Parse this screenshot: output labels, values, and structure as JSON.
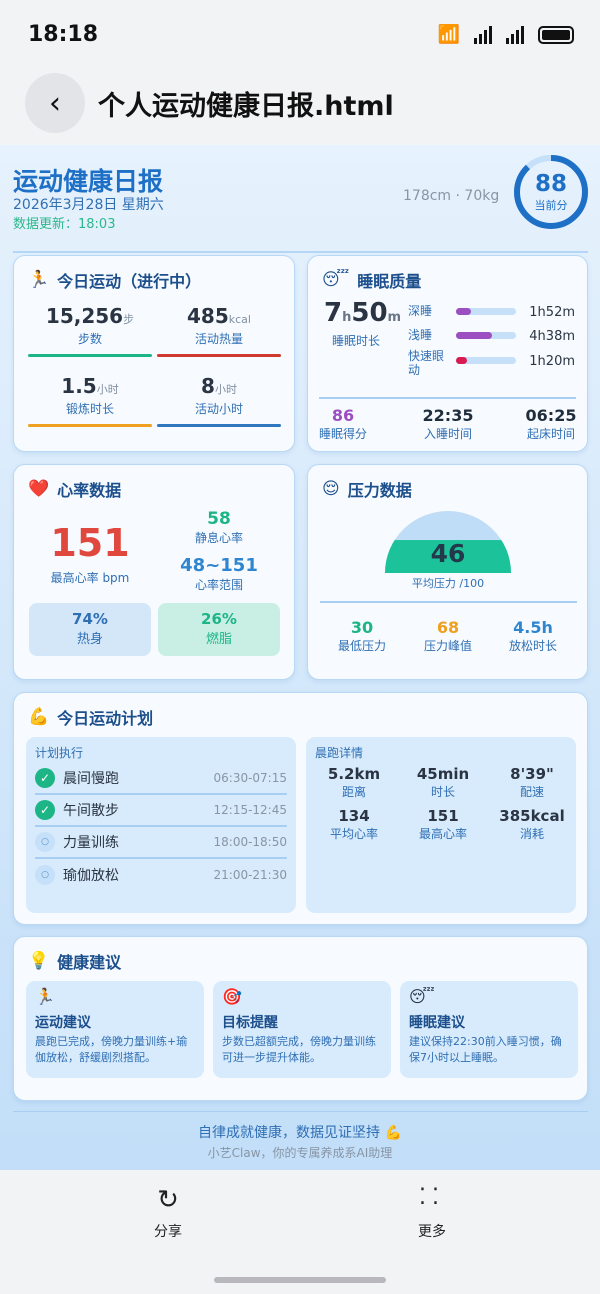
{
  "status_bar": {
    "time": "18:18"
  },
  "header": {
    "title": "个人运动健康日报.html"
  },
  "report": {
    "title": "运动健康日报",
    "date": "2026年3月28日 星期六",
    "updated": "数据更新：18:03",
    "body": "178cm · 70kg",
    "score": "88",
    "score_label": "当前分",
    "score_percent": 88
  },
  "colors": {
    "accent": "#1e6fc6",
    "green": "#1db586",
    "red": "#e0483e",
    "orange": "#f0a020"
  },
  "activity": {
    "icon": "🏃",
    "title": "今日运动（进行中）",
    "stats": [
      {
        "value": "15,256",
        "unit": "步",
        "label": "步数",
        "color": "#1db586"
      },
      {
        "value": "485",
        "unit": "kcal",
        "label": "活动热量",
        "color": "#d0392f"
      },
      {
        "value": "1.5",
        "unit": "小时",
        "label": "锻炼时长",
        "color": "#f0a020"
      },
      {
        "value": "8",
        "unit": "小时",
        "label": "活动小时",
        "color": "#2f78c0"
      }
    ]
  },
  "sleep": {
    "icon": "😴",
    "title": "睡眠质量",
    "hours": "7",
    "h": "h",
    "minutes": "50",
    "m": "m",
    "duration_label": "睡眠时长",
    "stages": [
      {
        "label": "深睡",
        "value": "1h52m",
        "fraction": 0.25,
        "color": "#9b4fc0"
      },
      {
        "label": "浅睡",
        "value": "4h38m",
        "fraction": 0.6,
        "color": "#9b4fc0"
      },
      {
        "label": "快速眼动",
        "value": "1h20m",
        "fraction": 0.18,
        "color": "#d81b50"
      }
    ],
    "score": "86",
    "score_label": "睡眠得分",
    "bedtime": "22:35",
    "bedtime_label": "入睡时间",
    "wake": "06:25",
    "wake_label": "起床时间"
  },
  "heart": {
    "icon": "❤️",
    "title": "心率数据",
    "max": "151",
    "max_label": "最高心率 bpm",
    "resting": "58",
    "resting_label": "静息心率",
    "range": "48~151",
    "range_label": "心率范围",
    "zones": [
      {
        "value": "74%",
        "label": "热身"
      },
      {
        "value": "26%",
        "label": "燃脂"
      }
    ]
  },
  "stress": {
    "icon": "😌",
    "title": "压力数据",
    "avg": "46",
    "avg_label": "平均压力 /100",
    "avg_value": 46,
    "stats": [
      {
        "value": "30",
        "label": "最低压力"
      },
      {
        "value": "68",
        "label": "压力峰值"
      },
      {
        "value": "4.5h",
        "label": "放松时长"
      }
    ]
  },
  "plan": {
    "icon": "💪",
    "title": "今日运动计划",
    "exec_title": "计划执行",
    "items": [
      {
        "name": "晨间慢跑",
        "time": "06:30-07:15",
        "done": true
      },
      {
        "name": "午间散步",
        "time": "12:15-12:45",
        "done": true
      },
      {
        "name": "力量训练",
        "time": "18:00-18:50",
        "done": false
      },
      {
        "name": "瑜伽放松",
        "time": "21:00-21:30",
        "done": false
      }
    ],
    "run_title": "晨跑详情",
    "run": [
      {
        "value": "5.2km",
        "label": "距离"
      },
      {
        "value": "45min",
        "label": "时长"
      },
      {
        "value": "8'39\"",
        "label": "配速"
      },
      {
        "value": "134",
        "label": "平均心率"
      },
      {
        "value": "151",
        "label": "最高心率"
      },
      {
        "value": "385kcal",
        "label": "消耗"
      }
    ]
  },
  "advice": {
    "icon": "💡",
    "title": "健康建议",
    "items": [
      {
        "icon": "🏃",
        "title": "运动建议",
        "desc": "晨跑已完成，傍晚力量训练+瑜伽放松，舒缓剧烈搭配。"
      },
      {
        "icon": "🎯",
        "title": "目标提醒",
        "desc": "步数已超额完成，傍晚力量训练可进一步提升体能。"
      },
      {
        "icon": "😴",
        "title": "睡眠建议",
        "desc": "建议保持22:30前入睡习惯，确保7小时以上睡眠。"
      }
    ]
  },
  "footer": {
    "slogan": "自律成就健康，数据见证坚持 💪",
    "sub": "小艺Claw，你的专属养成系AI助理"
  },
  "bottom": {
    "share": "分享",
    "more": "更多"
  }
}
